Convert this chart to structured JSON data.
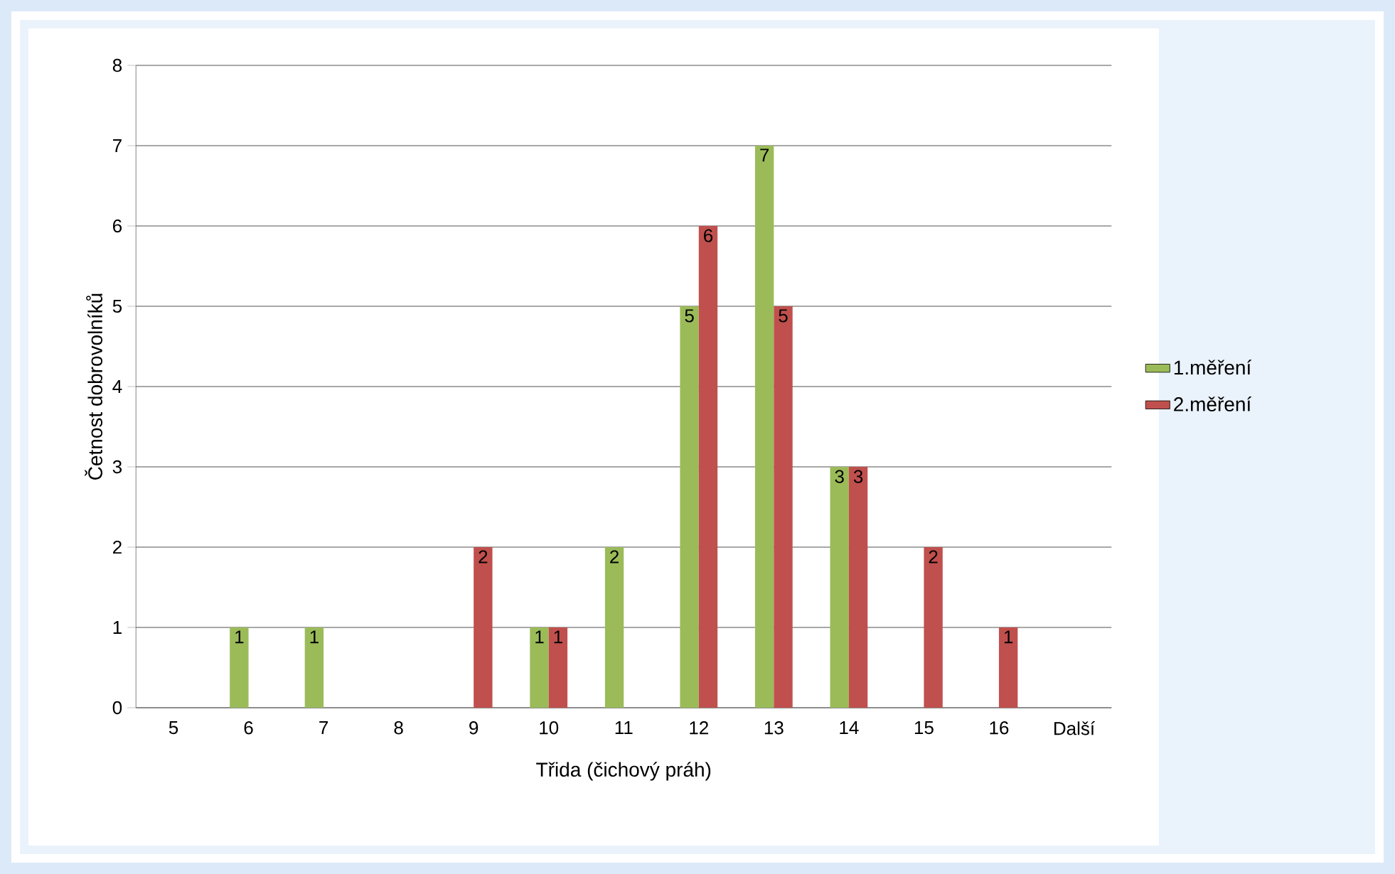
{
  "chart_data": {
    "type": "bar",
    "xlabel": "Třida (čichový práh)",
    "ylabel": "Četnost dobrovolníků",
    "categories": [
      "5",
      "6",
      "7",
      "8",
      "9",
      "10",
      "11",
      "12",
      "13",
      "14",
      "15",
      "16",
      "Další"
    ],
    "series": [
      {
        "name": "1.měření",
        "color": "#9bbb59",
        "values": [
          0,
          1,
          1,
          0,
          0,
          1,
          2,
          5,
          7,
          3,
          0,
          0,
          0
        ],
        "value_labels": [
          null,
          "1",
          "1",
          null,
          null,
          "1",
          "2",
          "5",
          "7",
          "3",
          null,
          null,
          null
        ]
      },
      {
        "name": "2.měření",
        "color": "#c0504d",
        "values": [
          0,
          0,
          0,
          0,
          2,
          1,
          0,
          6,
          5,
          3,
          2,
          1,
          0
        ],
        "value_labels": [
          null,
          null,
          null,
          null,
          "2",
          "1",
          null,
          "6",
          "5",
          "3",
          "2",
          "1",
          null
        ]
      }
    ],
    "ylim": [
      0,
      8
    ],
    "yticks": [
      0,
      1,
      2,
      3,
      4,
      5,
      6,
      7,
      8
    ],
    "grid": "y",
    "legend": "right"
  }
}
